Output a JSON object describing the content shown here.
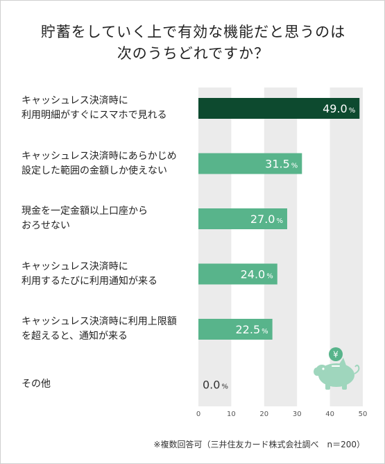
{
  "title_lines": [
    "貯蓄をしていく上で有効な機能だと思うのは",
    "次のうちどれですか？"
  ],
  "note": "※複数回答可（三井住友カード株式会社調べ　n＝200）",
  "colors": {
    "highlight": "#0d4a2f",
    "bar": "#58b48b",
    "band": "#ebebeb",
    "label_dark": "#333333",
    "label_light": "#ffffff"
  },
  "decoration": {
    "icon": "piggy-bank-icon",
    "coin_glyph": "¥"
  },
  "chart_data": {
    "type": "bar",
    "orientation": "horizontal",
    "categories": [
      [
        "キャッシュレス決済時に",
        "利用明細がすぐにスマホで見れる"
      ],
      [
        "キャッシュレス決済時にあらかじめ",
        "設定した範囲の金額しか使えない"
      ],
      [
        "現金を一定金額以上口座から",
        "おろせない"
      ],
      [
        "キャッシュレス決済時に",
        "利用するたびに利用通知が来る"
      ],
      [
        "キャッシュレス決済時に利用上限額",
        "を超えると、通知が来る"
      ],
      [
        "その他"
      ]
    ],
    "values": [
      49.0,
      31.5,
      27.0,
      24.0,
      22.5,
      0.0
    ],
    "value_labels": [
      "49.0",
      "31.5",
      "27.0",
      "24.0",
      "22.5",
      "0.0"
    ],
    "value_unit": "%",
    "highlight_index": 0,
    "xlim": [
      0,
      50
    ],
    "xticks": [
      0,
      10,
      20,
      30,
      40,
      50
    ],
    "xtick_labels": [
      "0",
      "10",
      "20",
      "30",
      "40",
      "50"
    ],
    "grid": "alternating vertical bands"
  }
}
